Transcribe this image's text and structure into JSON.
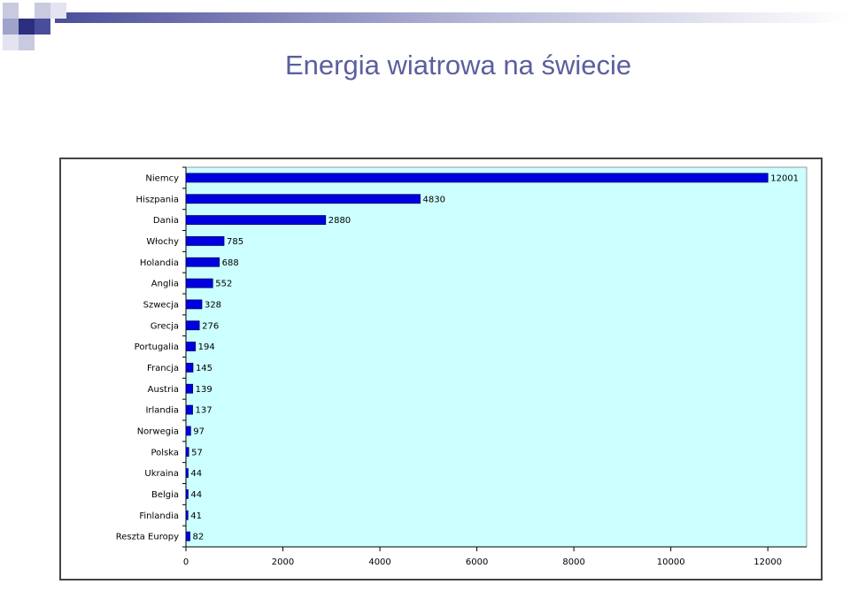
{
  "slide": {
    "title": "Energia wiatrowa na świecie"
  },
  "chart_data": {
    "type": "bar",
    "orientation": "horizontal",
    "categories": [
      "Niemcy",
      "Hiszpania",
      "Dania",
      "Włochy",
      "Holandia",
      "Anglia",
      "Szwecja",
      "Grecja",
      "Portugalia",
      "Francja",
      "Austria",
      "Irlandia",
      "Norwegia",
      "Polska",
      "Ukraina",
      "Belgia",
      "Finlandia",
      "Reszta Europy"
    ],
    "values": [
      12001,
      4830,
      2880,
      785,
      688,
      552,
      328,
      276,
      194,
      145,
      139,
      137,
      97,
      57,
      44,
      44,
      41,
      82
    ],
    "value_labels": [
      "12001",
      "4830",
      "2880",
      "785",
      "688",
      "552",
      "328",
      "276",
      "194",
      "145",
      "139",
      "137",
      "97",
      "57",
      "44",
      "44",
      "41",
      "82"
    ],
    "x_ticks": [
      0,
      2000,
      4000,
      6000,
      8000,
      10000,
      12000
    ],
    "x_tick_labels": [
      "0",
      "2000",
      "4000",
      "6000",
      "8000",
      "10000",
      "12000"
    ],
    "xlim": [
      0,
      12800
    ],
    "grid": false,
    "legend": "none",
    "colors": {
      "bar": "#0000e0",
      "bar_edge": "#000060",
      "plot_background": "#ccffff"
    }
  }
}
